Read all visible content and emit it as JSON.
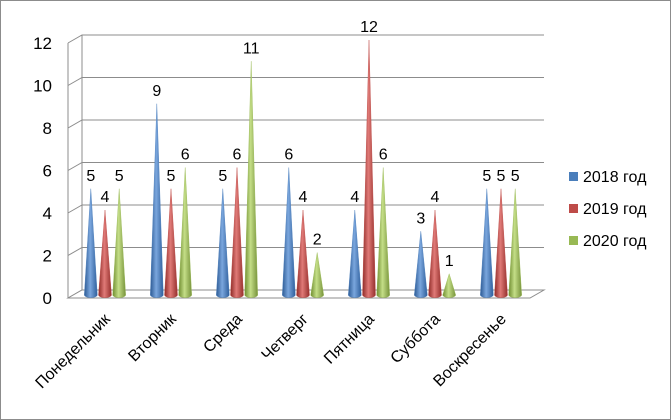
{
  "chart_data": {
    "type": "bar",
    "bar_shape": "cone",
    "title": "",
    "xlabel": "",
    "ylabel": "",
    "categories": [
      "Понедельник",
      "Вторник",
      "Среда",
      "Четверг",
      "Пятница",
      "Суббота",
      "Воскресенье"
    ],
    "series": [
      {
        "name": "2018 год",
        "color": "#4a7ebb",
        "values": [
          5,
          9,
          5,
          6,
          4,
          3,
          5
        ]
      },
      {
        "name": "2019 год",
        "color": "#be4b48",
        "values": [
          4,
          5,
          6,
          4,
          12,
          4,
          5
        ]
      },
      {
        "name": "2020 год",
        "color": "#98b954",
        "values": [
          5,
          6,
          11,
          2,
          6,
          1,
          5
        ]
      }
    ],
    "ylim": [
      0,
      12
    ],
    "yticks": [
      0,
      2,
      4,
      6,
      8,
      10,
      12
    ],
    "grid": true,
    "data_labels": true,
    "legend_position": "right"
  }
}
